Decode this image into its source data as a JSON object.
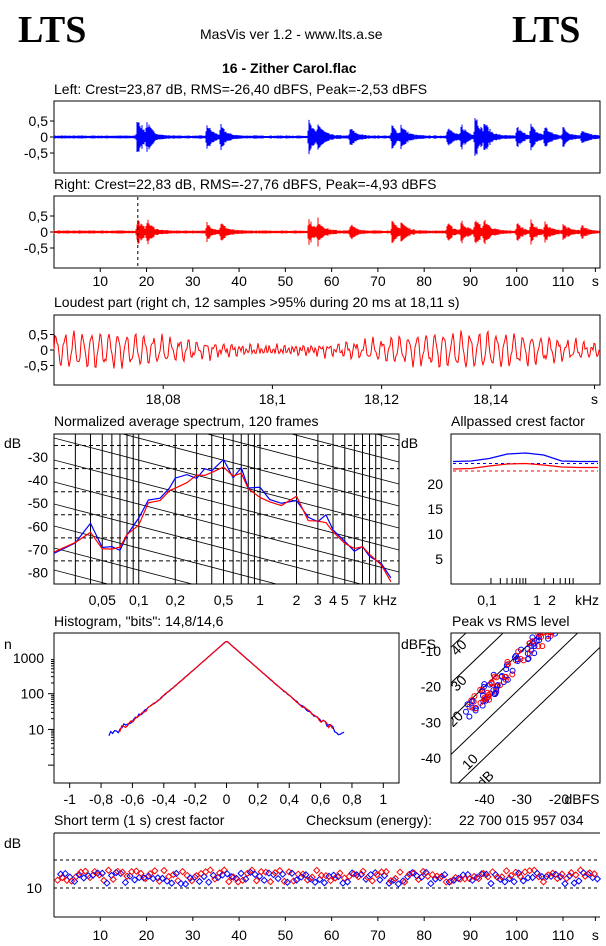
{
  "header": {
    "logo_left": "LTS",
    "logo_right": "LTS",
    "app_title": "MasVis ver 1.2 - www.lts.a.se",
    "track_title": "16 - Zither Carol.flac"
  },
  "colors": {
    "left": "#0000ff",
    "right": "#ff0000",
    "axis": "#000000"
  },
  "panels": {
    "left_title": "Left: Crest=23,87 dB, RMS=-26,40 dBFS, Peak=-2,53 dBFS",
    "right_title": "Right: Crest=22,83 dB, RMS=-27,76 dBFS, Peak=-4,93 dBFS",
    "loudest_title": "Loudest part (right ch, 12 samples >95% during 20 ms at 18,11 s)",
    "spectrum_title": "Normalized average spectrum, 120 frames",
    "allpass_title": "Allpassed crest factor",
    "histogram_title": "Histogram, \"bits\": 14,8/14,6",
    "peakrms_title": "Peak vs RMS level",
    "shortterm_title": "Short term (1 s) crest factor",
    "checksum_label": "Checksum (energy):",
    "checksum_value": "22 700 015 957 034"
  },
  "chart_data": [
    {
      "type": "line",
      "name": "waveform-left",
      "title": "Left: Crest=23,87 dB, RMS=-26,40 dBFS, Peak=-2,53 dBFS",
      "yticks": [
        "0,5",
        "0",
        "-0,5"
      ],
      "ylim": [
        -1,
        1
      ],
      "xlim": [
        0,
        118
      ],
      "series": [
        {
          "name": "",
          "color": "#0000ff",
          "bursts": [
            [
              18,
              0.75
            ],
            [
              20,
              0.4
            ],
            [
              33,
              0.45
            ],
            [
              36,
              0.35
            ],
            [
              55,
              0.55
            ],
            [
              57,
              0.4
            ],
            [
              64,
              0.3
            ],
            [
              73,
              0.4
            ],
            [
              75,
              0.35
            ],
            [
              85,
              0.35
            ],
            [
              88,
              0.4
            ],
            [
              91,
              0.8
            ],
            [
              93,
              0.4
            ],
            [
              100,
              0.35
            ],
            [
              103,
              0.4
            ],
            [
              106,
              0.35
            ],
            [
              110,
              0.3
            ],
            [
              114,
              0.25
            ]
          ]
        }
      ]
    },
    {
      "type": "line",
      "name": "waveform-right",
      "title": "Right: Crest=22,83 dB, RMS=-27,76 dBFS, Peak=-4,93 dBFS",
      "yticks": [
        "0,5",
        "0",
        "-0,5"
      ],
      "ylim": [
        -1,
        1
      ],
      "xlim": [
        0,
        118
      ],
      "xticks": [
        "10",
        "20",
        "30",
        "40",
        "50",
        "60",
        "70",
        "80",
        "90",
        "100",
        "110",
        "s"
      ],
      "marker_x": 18.11,
      "series": [
        {
          "name": "",
          "color": "#ff0000",
          "bursts": [
            [
              18,
              0.45
            ],
            [
              20,
              0.35
            ],
            [
              33,
              0.3
            ],
            [
              36,
              0.3
            ],
            [
              55,
              0.45
            ],
            [
              57,
              0.35
            ],
            [
              64,
              0.25
            ],
            [
              73,
              0.35
            ],
            [
              75,
              0.3
            ],
            [
              85,
              0.3
            ],
            [
              88,
              0.35
            ],
            [
              91,
              0.45
            ],
            [
              93,
              0.35
            ],
            [
              100,
              0.3
            ],
            [
              103,
              0.35
            ],
            [
              106,
              0.3
            ],
            [
              110,
              0.25
            ],
            [
              114,
              0.2
            ]
          ]
        }
      ]
    },
    {
      "type": "line",
      "name": "loudest-part",
      "title": "Loudest part (right ch, 12 samples >95% during 20 ms at 18,11 s)",
      "yticks": [
        "0,5",
        "0",
        "-0,5"
      ],
      "xlim": [
        18.06,
        18.16
      ],
      "xticks": [
        "18,08",
        "18,1",
        "18,12",
        "18,14",
        "s"
      ],
      "series": [
        {
          "name": "",
          "color": "#ff0000",
          "cycles": 62,
          "amplitude": 0.35
        }
      ]
    },
    {
      "type": "line",
      "name": "average-spectrum",
      "title": "Normalized average spectrum, 120 frames",
      "ylabel": "dB",
      "yticks": [
        "-30",
        "-40",
        "-50",
        "-60",
        "-70",
        "-80"
      ],
      "xticks": [
        "0,05",
        "0,1",
        "0,2",
        "0,5",
        "1",
        "2",
        "3",
        "4",
        "5",
        "7",
        "kHz"
      ],
      "xscale": "log",
      "x": [
        0.02,
        0.03,
        0.04,
        0.05,
        0.06,
        0.07,
        0.08,
        0.1,
        0.12,
        0.15,
        0.18,
        0.2,
        0.25,
        0.3,
        0.35,
        0.4,
        0.5,
        0.6,
        0.7,
        0.8,
        1,
        1.2,
        1.5,
        2,
        2.5,
        3,
        3.5,
        4,
        5,
        6,
        7,
        8,
        10,
        12
      ],
      "series": [
        {
          "name": "",
          "color": "#0000ff",
          "values": [
            -72,
            -68,
            -60,
            -68,
            -67,
            -70,
            -62,
            -58,
            -50,
            -48,
            -45,
            -41,
            -39,
            -38,
            -36,
            -36,
            -33,
            -38,
            -36,
            -42,
            -45,
            -48,
            -50,
            -47,
            -55,
            -58,
            -56,
            -63,
            -66,
            -71,
            -70,
            -73,
            -78,
            -83
          ]
        },
        {
          "name": "",
          "color": "#ff0000",
          "values": [
            -71,
            -67,
            -62,
            -69,
            -68,
            -69,
            -63,
            -59,
            -51,
            -49,
            -46,
            -42,
            -40,
            -39,
            -37,
            -37,
            -34,
            -39,
            -37,
            -43,
            -46,
            -49,
            -51,
            -48,
            -56,
            -59,
            -57,
            -64,
            -67,
            -70,
            -69,
            -72,
            -77,
            -82
          ]
        }
      ]
    },
    {
      "type": "line",
      "name": "allpassed-crest",
      "title": "Allpassed crest factor",
      "ylabel": "dB",
      "yticks": [
        "20",
        "15",
        "10",
        "5"
      ],
      "xticks": [
        "0,1",
        "1",
        "2",
        "kHz"
      ],
      "series": [
        {
          "name": "",
          "color": "#0000ff",
          "values": [
            24.5,
            24.6,
            25.1,
            26.0,
            26.2,
            25.8,
            24.6,
            24.5,
            24.5
          ]
        },
        {
          "name": "",
          "color": "#ff0000",
          "values": [
            23.0,
            23.1,
            23.6,
            24.0,
            24.1,
            23.8,
            23.4,
            23.3,
            23.3
          ]
        }
      ]
    },
    {
      "type": "line",
      "name": "histogram",
      "title": "Histogram, \"bits\": 14,8/14,6",
      "ylabel": "n",
      "yticks": [
        "1000",
        "100",
        "10"
      ],
      "yscale": "log",
      "xticks": [
        "-1",
        "-0,8",
        "-0,6",
        "-0,4",
        "-0,2",
        "0",
        "0,2",
        "0,4",
        "0,6",
        "0,8",
        "1"
      ],
      "xlim": [
        -1.1,
        1.1
      ]
    },
    {
      "type": "scatter",
      "name": "peak-vs-rms",
      "title": "Peak vs RMS level",
      "ylabel": "dBFS",
      "yticks": [
        "-10",
        "-20",
        "-30",
        "-40"
      ],
      "xticks": [
        "-40",
        "-30",
        "-20",
        "dBFS"
      ],
      "diagonal_labels": [
        "40",
        "30",
        "20",
        "10",
        "0 dB"
      ]
    },
    {
      "type": "scatter",
      "name": "short-term-crest",
      "title": "Short term (1 s) crest factor",
      "ylabel": "dB",
      "yticks": [
        "10"
      ],
      "xticks": [
        "10",
        "20",
        "30",
        "40",
        "50",
        "60",
        "70",
        "80",
        "90",
        "100",
        "110",
        "s"
      ]
    }
  ]
}
